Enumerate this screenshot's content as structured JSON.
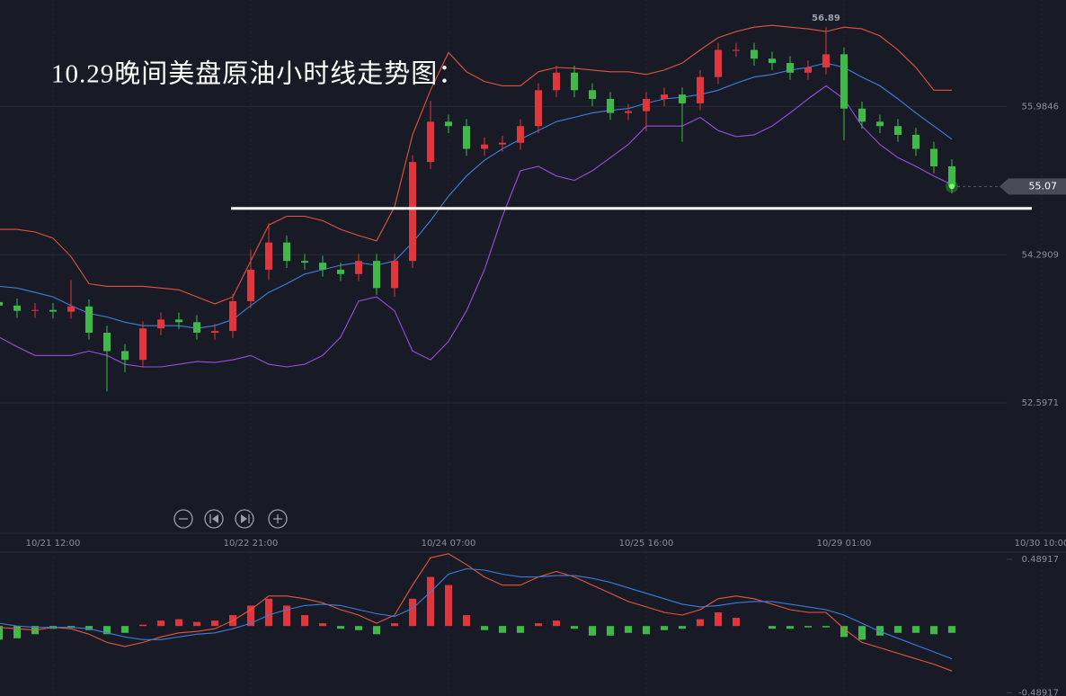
{
  "chart_data": [
    {
      "type": "candlestick",
      "title": "10.29晚间美盘原油小时线走势图：",
      "categories": [
        null,
        null,
        null,
        "10/21 12:00",
        null,
        null,
        null,
        null,
        null,
        null,
        null,
        null,
        null,
        null,
        "10/22 21:00",
        null,
        null,
        null,
        null,
        null,
        null,
        null,
        null,
        null,
        null,
        "10/24 07:00",
        null,
        null,
        null,
        null,
        null,
        null,
        null,
        null,
        null,
        null,
        "10/25 16:00",
        null,
        null,
        null,
        null,
        null,
        null,
        null,
        null,
        null,
        null,
        "10/29 01:00",
        null,
        null,
        null,
        null,
        null,
        null,
        null,
        null,
        null,
        null,
        "10/30 10:00"
      ],
      "open": [
        53.75,
        53.71,
        53.65,
        53.66,
        53.64,
        53.7,
        53.4,
        53.19,
        53.09,
        53.45,
        53.55,
        53.52,
        53.4,
        53.42,
        53.76,
        54.12,
        54.43,
        54.22,
        54.2,
        54.12,
        54.07,
        54.22,
        53.91,
        54.22,
        55.35,
        55.81,
        55.76,
        55.5,
        55.55,
        55.57,
        55.76,
        56.17,
        56.37,
        56.17,
        56.07,
        55.91,
        55.93,
        56.07,
        56.12,
        56.02,
        56.32,
        56.63,
        56.63,
        56.53,
        56.48,
        56.37,
        56.43,
        56.58,
        55.96,
        55.81,
        55.76,
        55.66,
        55.5,
        55.3,
        null,
        null,
        null,
        null,
        null
      ],
      "high": [
        53.83,
        53.79,
        53.74,
        53.74,
        54.0,
        53.78,
        53.48,
        53.27,
        53.53,
        53.63,
        53.63,
        53.6,
        53.5,
        53.84,
        54.35,
        54.65,
        54.51,
        54.3,
        54.28,
        54.2,
        54.3,
        54.3,
        54.3,
        55.43,
        56.05,
        55.89,
        55.84,
        55.63,
        55.65,
        55.84,
        56.25,
        56.45,
        56.45,
        56.25,
        56.15,
        56.01,
        56.15,
        56.2,
        56.2,
        56.4,
        56.71,
        56.71,
        56.71,
        56.61,
        56.56,
        56.51,
        56.89,
        56.66,
        56.04,
        55.89,
        55.84,
        55.74,
        55.58,
        55.38,
        null,
        null,
        null,
        null,
        null
      ],
      "low": [
        53.63,
        53.57,
        53.57,
        53.56,
        53.56,
        53.32,
        52.73,
        52.95,
        53.01,
        53.37,
        53.44,
        53.32,
        53.32,
        53.34,
        53.68,
        54.0,
        54.14,
        54.12,
        54.04,
        53.99,
        53.99,
        53.83,
        53.81,
        54.14,
        55.27,
        55.68,
        55.42,
        55.42,
        55.47,
        55.49,
        55.68,
        56.09,
        56.09,
        55.99,
        55.83,
        55.83,
        55.7,
        55.99,
        55.58,
        55.94,
        56.24,
        56.55,
        56.45,
        56.4,
        56.29,
        56.29,
        56.35,
        55.6,
        55.73,
        55.68,
        55.58,
        55.42,
        55.22,
        54.99,
        null,
        null,
        null,
        null,
        null
      ],
      "close": [
        53.71,
        53.65,
        53.66,
        53.64,
        53.7,
        53.4,
        53.19,
        53.09,
        53.45,
        53.55,
        53.52,
        53.4,
        53.42,
        53.76,
        54.12,
        54.43,
        54.22,
        54.2,
        54.12,
        54.07,
        54.22,
        53.91,
        54.22,
        55.35,
        55.81,
        55.76,
        55.5,
        55.55,
        55.57,
        55.76,
        56.17,
        56.37,
        56.17,
        56.07,
        55.91,
        55.93,
        56.07,
        56.12,
        56.02,
        56.32,
        56.63,
        56.63,
        56.53,
        56.48,
        56.37,
        56.43,
        56.58,
        55.96,
        55.81,
        55.76,
        55.66,
        55.5,
        55.3,
        55.07,
        null,
        null,
        null,
        null,
        null
      ],
      "up_color": "#e0363e",
      "down_color": "#3fba48",
      "overlays": [
        {
          "color": "#e0553a",
          "values": [
            54.58,
            54.58,
            54.55,
            54.48,
            54.27,
            53.96,
            53.93,
            53.93,
            53.93,
            53.91,
            53.89,
            53.81,
            53.73,
            53.81,
            54.22,
            54.63,
            54.73,
            54.73,
            54.68,
            54.58,
            54.51,
            54.45,
            54.84,
            55.66,
            56.17,
            56.6,
            56.38,
            56.27,
            56.22,
            56.22,
            56.38,
            56.43,
            56.42,
            56.4,
            56.38,
            56.38,
            56.35,
            56.4,
            56.48,
            56.63,
            56.77,
            56.84,
            56.89,
            56.91,
            56.89,
            56.87,
            56.84,
            56.89,
            56.87,
            56.79,
            56.63,
            56.43,
            56.17,
            56.17,
            null,
            null,
            null,
            null,
            null
          ]
        },
        {
          "color": "#3f7fe0",
          "values": [
            53.93,
            53.91,
            53.86,
            53.81,
            53.71,
            53.62,
            53.58,
            53.52,
            53.48,
            53.48,
            53.48,
            53.45,
            53.48,
            53.55,
            53.71,
            53.86,
            53.96,
            54.07,
            54.12,
            54.17,
            54.2,
            54.17,
            54.22,
            54.43,
            54.68,
            54.96,
            55.19,
            55.37,
            55.5,
            55.61,
            55.71,
            55.81,
            55.86,
            55.91,
            55.94,
            55.96,
            56.02,
            56.07,
            56.09,
            56.12,
            56.17,
            56.25,
            56.32,
            56.35,
            56.4,
            56.43,
            56.48,
            56.43,
            56.32,
            56.22,
            56.07,
            55.91,
            55.76,
            55.61,
            null,
            null,
            null,
            null,
            null
          ]
        },
        {
          "color": "#9a4de0",
          "values": [
            53.35,
            53.24,
            53.14,
            53.14,
            53.14,
            53.19,
            53.14,
            53.04,
            53.01,
            53.01,
            53.04,
            53.07,
            53.06,
            53.09,
            53.14,
            53.04,
            53.01,
            53.04,
            53.14,
            53.35,
            53.76,
            53.81,
            53.65,
            53.19,
            53.09,
            53.3,
            53.65,
            54.12,
            54.73,
            55.25,
            55.3,
            55.19,
            55.14,
            55.25,
            55.4,
            55.55,
            55.76,
            55.76,
            55.76,
            55.86,
            55.71,
            55.64,
            55.66,
            55.76,
            55.91,
            56.07,
            56.22,
            56.07,
            55.76,
            55.55,
            55.4,
            55.3,
            55.19,
            55.09,
            null,
            null,
            null,
            null,
            null
          ]
        }
      ],
      "hlines": [
        54.82
      ],
      "ylim": [
        51.12,
        57.2
      ],
      "yticks": [
        55.9846,
        54.2909,
        52.5971
      ],
      "grid": true
    },
    {
      "type": "macd",
      "histogram": {
        "up_color": "#e0363e",
        "down_color": "#3fba48",
        "values": [
          -0.1,
          -0.09,
          -0.06,
          -0.02,
          -0.01,
          -0.03,
          -0.06,
          -0.05,
          0.01,
          0.04,
          0.05,
          0.03,
          0.04,
          0.08,
          0.15,
          0.2,
          0.15,
          0.08,
          0.02,
          -0.02,
          -0.03,
          -0.06,
          0.02,
          0.2,
          0.36,
          0.3,
          0.08,
          -0.03,
          -0.05,
          -0.05,
          0.02,
          0.04,
          -0.02,
          -0.07,
          -0.07,
          -0.05,
          -0.06,
          -0.03,
          -0.02,
          0.05,
          0.1,
          0.06,
          0,
          -0.02,
          -0.02,
          -0.01,
          -0.01,
          -0.08,
          -0.1,
          -0.07,
          -0.05,
          -0.05,
          -0.06,
          -0.05,
          null,
          null,
          null,
          null,
          null
        ]
      },
      "series": [
        {
          "color": "#e8553e",
          "values": [
            -0.01,
            -0.02,
            -0.03,
            -0.01,
            -0.02,
            -0.06,
            -0.12,
            -0.15,
            -0.12,
            -0.08,
            -0.05,
            -0.04,
            -0.02,
            0.04,
            0.12,
            0.22,
            0.22,
            0.2,
            0.17,
            0.12,
            0.08,
            0.02,
            0.08,
            0.3,
            0.5,
            0.53,
            0.45,
            0.36,
            0.3,
            0.3,
            0.36,
            0.4,
            0.36,
            0.3,
            0.24,
            0.18,
            0.14,
            0.1,
            0.08,
            0.12,
            0.2,
            0.22,
            0.2,
            0.16,
            0.12,
            0.1,
            0.1,
            -0.02,
            -0.12,
            -0.16,
            -0.2,
            -0.24,
            -0.28,
            -0.33,
            null,
            null,
            null,
            null,
            null
          ]
        },
        {
          "color": "#3b7ddd",
          "values": [
            0.02,
            0,
            -0.01,
            -0.01,
            -0.01,
            -0.02,
            -0.05,
            -0.08,
            -0.1,
            -0.1,
            -0.08,
            -0.06,
            -0.05,
            -0.02,
            0.02,
            0.08,
            0.12,
            0.15,
            0.16,
            0.15,
            0.12,
            0.09,
            0.07,
            0.13,
            0.25,
            0.38,
            0.42,
            0.41,
            0.38,
            0.36,
            0.36,
            0.37,
            0.37,
            0.35,
            0.32,
            0.28,
            0.24,
            0.2,
            0.16,
            0.14,
            0.15,
            0.17,
            0.18,
            0.18,
            0.16,
            0.14,
            0.12,
            0.08,
            0.02,
            -0.04,
            -0.09,
            -0.14,
            -0.19,
            -0.24,
            null,
            null,
            null,
            null,
            null
          ]
        }
      ],
      "ylim": [
        -0.5,
        0.555
      ],
      "yticks": [
        0.48917,
        -0.48917
      ]
    }
  ]
}
